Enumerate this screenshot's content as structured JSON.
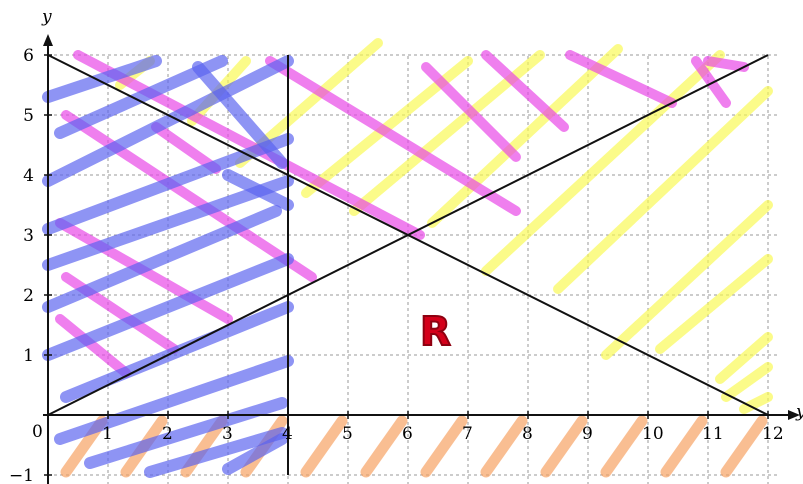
{
  "chart_data": {
    "type": "line",
    "x_axis": {
      "label": "y",
      "range": [
        0,
        12
      ],
      "ticks": [
        "1",
        "2",
        "3",
        "4",
        "5",
        "6",
        "7",
        "8",
        "9",
        "10",
        "11",
        "12"
      ]
    },
    "y_axis": {
      "label": "y",
      "range": [
        -1,
        6
      ],
      "ticks": [
        "−1",
        "1",
        "2",
        "3",
        "4",
        "5",
        "6"
      ]
    },
    "origin_label": "0",
    "grid": true,
    "lines": [
      {
        "points": [
          [
            0,
            6
          ],
          [
            12,
            0
          ]
        ]
      },
      {
        "points": [
          [
            0,
            0
          ],
          [
            12,
            6
          ]
        ]
      },
      {
        "points": [
          [
            4,
            -1
          ],
          [
            4,
            6
          ]
        ]
      }
    ],
    "region_label": "R",
    "shading": {
      "blue": "#5a62f0",
      "magenta": "#e844e6",
      "yellow": "#fafa52",
      "orange": "#f7a060"
    }
  }
}
